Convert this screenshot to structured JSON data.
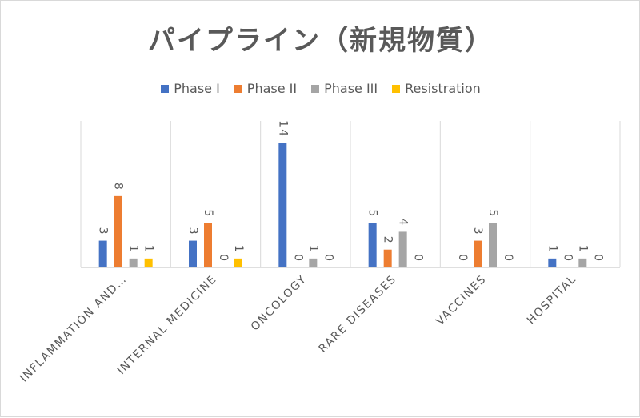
{
  "chart_data": {
    "type": "bar",
    "title": "パイプライン（新規物質）",
    "categories": [
      "INFLAMMATION AND…",
      "INTERNAL MEDICINE",
      "ONCOLOGY",
      "RARE DISEASES",
      "VACCINES",
      "HOSPITAL"
    ],
    "series": [
      {
        "name": "Phase I",
        "color": "#4472c4",
        "values": [
          3,
          3,
          14,
          5,
          null,
          1
        ],
        "labels": [
          "3",
          "3",
          "14",
          "5",
          "",
          "1"
        ]
      },
      {
        "name": "Phase II",
        "color": "#ed7d31",
        "values": [
          8,
          5,
          0,
          2,
          3,
          0
        ],
        "labels": [
          "8",
          "5",
          "0",
          "2",
          "3",
          "0"
        ]
      },
      {
        "name": "Phase III",
        "color": "#a5a5a5",
        "values": [
          1,
          0,
          1,
          4,
          5,
          1
        ],
        "labels": [
          "1",
          "0",
          "1",
          "4",
          "5",
          "1"
        ]
      },
      {
        "name": "Resistration",
        "color": "#ffc000",
        "values": [
          1,
          1,
          0,
          0,
          0,
          0
        ],
        "labels": [
          "1",
          "1",
          "0",
          "0",
          "0",
          "0"
        ]
      }
    ],
    "extra_labels": [
      {
        "category": 4,
        "series": 0,
        "text": "0"
      }
    ],
    "ylim": [
      0,
      14
    ],
    "legend_position": "top",
    "grid": "vertical separators only",
    "colors": {
      "text": "#595959",
      "gridline": "#d9d9d9",
      "axis": "#bfbfbf"
    }
  }
}
